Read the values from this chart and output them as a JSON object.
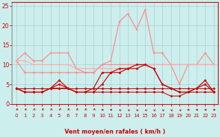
{
  "xlabel": "Vent moyen/en rafales ( km/h )",
  "background_color": "#cceeed",
  "grid_color": "#aacccc",
  "x_ticks": [
    0,
    1,
    2,
    3,
    4,
    5,
    6,
    7,
    8,
    9,
    10,
    11,
    12,
    13,
    14,
    15,
    16,
    17,
    18,
    19,
    20,
    21,
    22,
    23
  ],
  "ylim": [
    0,
    26
  ],
  "yticks": [
    0,
    5,
    10,
    15,
    20,
    25
  ],
  "series": [
    {
      "values": [
        4,
        4,
        4,
        4,
        4,
        4,
        4,
        4,
        4,
        4,
        4,
        4,
        4,
        4,
        4,
        4,
        4,
        4,
        4,
        4,
        4,
        4,
        4,
        4
      ],
      "color": "#cc0000",
      "marker": "D",
      "markersize": 1.5,
      "linewidth": 0.8,
      "zorder": 5
    },
    {
      "values": [
        4,
        3,
        3,
        3,
        4,
        4,
        4,
        3,
        3,
        3,
        3,
        3,
        3,
        3,
        3,
        3,
        3,
        3,
        2,
        2,
        3,
        3,
        3,
        3
      ],
      "color": "#cc0000",
      "marker": "D",
      "markersize": 1.5,
      "linewidth": 0.8,
      "zorder": 5
    },
    {
      "values": [
        4,
        3,
        3,
        3,
        4,
        5,
        4,
        3,
        3,
        3,
        5,
        8,
        8,
        9,
        9,
        10,
        9,
        5,
        4,
        3,
        3,
        4,
        5,
        3
      ],
      "color": "#cc0000",
      "marker": "D",
      "markersize": 1.5,
      "linewidth": 0.9,
      "zorder": 5
    },
    {
      "values": [
        4,
        3,
        3,
        3,
        4,
        6,
        4,
        3,
        3,
        4,
        8,
        8,
        9,
        9,
        10,
        10,
        9,
        5,
        4,
        3,
        3,
        4,
        6,
        3
      ],
      "color": "#cc0000",
      "marker": "D",
      "markersize": 1.5,
      "linewidth": 0.9,
      "zorder": 5
    },
    {
      "values": [
        11,
        13,
        11,
        11,
        13,
        13,
        13,
        9,
        8,
        8,
        10,
        11,
        21,
        23,
        19,
        24,
        13,
        13,
        10,
        5,
        10,
        10,
        13,
        10
      ],
      "color": "#ff8888",
      "marker": "+",
      "markersize": 3,
      "linewidth": 0.9,
      "zorder": 2
    },
    {
      "values": [
        11,
        8,
        8,
        8,
        8,
        8,
        8,
        8,
        8,
        8,
        10,
        10,
        10,
        10,
        10,
        10,
        10,
        10,
        10,
        10,
        10,
        10,
        10,
        10
      ],
      "color": "#ff8888",
      "marker": "+",
      "markersize": 3,
      "linewidth": 0.9,
      "zorder": 2
    },
    {
      "values": [
        11,
        11,
        10,
        10,
        10,
        10,
        10,
        9,
        9,
        9,
        9,
        9,
        9,
        9,
        10,
        10,
        10,
        10,
        10,
        10,
        10,
        10,
        10,
        10
      ],
      "color": "#ffaaaa",
      "marker": "+",
      "markersize": 3,
      "linewidth": 0.9,
      "zorder": 2
    }
  ],
  "arrow_angles": [
    315,
    315,
    315,
    315,
    315,
    315,
    315,
    315,
    315,
    315,
    270,
    270,
    225,
    225,
    225,
    225,
    225,
    225,
    225,
    225,
    270,
    270,
    270,
    270
  ],
  "arrow_color": "#cc0000",
  "axis_label_color": "#cc0000",
  "tick_color": "#cc0000",
  "spine_color": "#cc0000"
}
